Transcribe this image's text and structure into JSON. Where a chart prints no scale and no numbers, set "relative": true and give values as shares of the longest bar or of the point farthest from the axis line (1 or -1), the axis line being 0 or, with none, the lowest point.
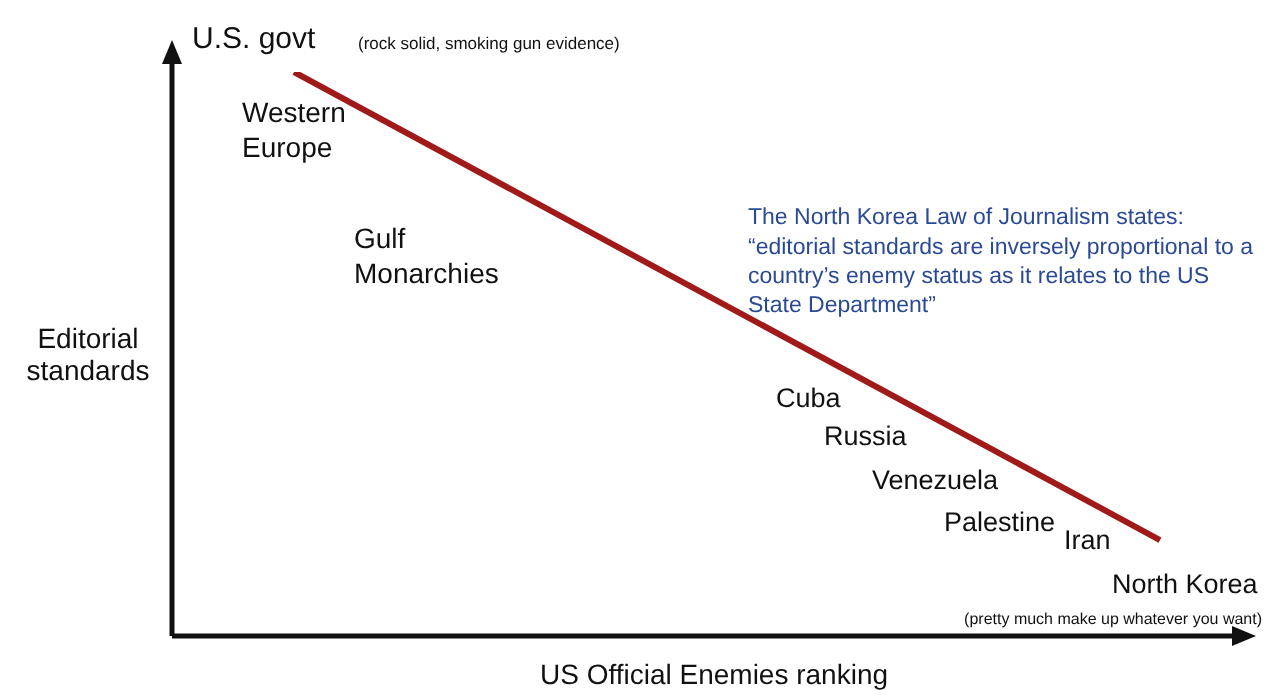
{
  "chart_data": {
    "type": "line",
    "relative": true,
    "xlabel": "US Official Enemies ranking",
    "ylabel": "Editorial standards",
    "categories": [
      null,
      null
    ],
    "series": [
      {
        "color": "#a01a1a",
        "values": [
          1,
          0.17
        ]
      }
    ],
    "marker": "none",
    "legend": false,
    "annotations": [
      "U.S. govt",
      "(rock solid, smoking gun evidence)",
      "Western\nEurope",
      "Gulf\nMonarchies",
      "The North Korea Law of Journalism states:\n“editorial standards are inversely proportional to a\ncountry’s enemy status as it relates to the US\nState Department”",
      "Cuba",
      "Russia",
      "Venezuela",
      "Palestine",
      "Iran",
      "North Korea",
      "(pretty much make up whatever you want)"
    ]
  }
}
